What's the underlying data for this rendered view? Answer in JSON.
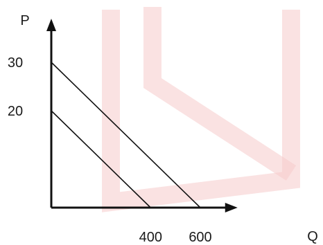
{
  "chart_data": {
    "type": "line",
    "title": "",
    "xlabel": "Q",
    "ylabel": "P",
    "xlim": [
      0,
      750
    ],
    "ylim": [
      0,
      39
    ],
    "grid": false,
    "x_ticks": [
      {
        "value": 400,
        "label": "400"
      },
      {
        "value": 600,
        "label": "600"
      }
    ],
    "y_ticks": [
      {
        "value": 30,
        "label": "30"
      },
      {
        "value": 20,
        "label": "20"
      }
    ],
    "series": [
      {
        "x": [
          0,
          600
        ],
        "y": [
          30,
          0
        ]
      },
      {
        "x": [
          0,
          400
        ],
        "y": [
          20,
          0
        ]
      }
    ],
    "colors": {
      "axis": "#111111",
      "line": "#111111",
      "text": "#1a1a1a",
      "watermark": "#f6caca"
    }
  }
}
